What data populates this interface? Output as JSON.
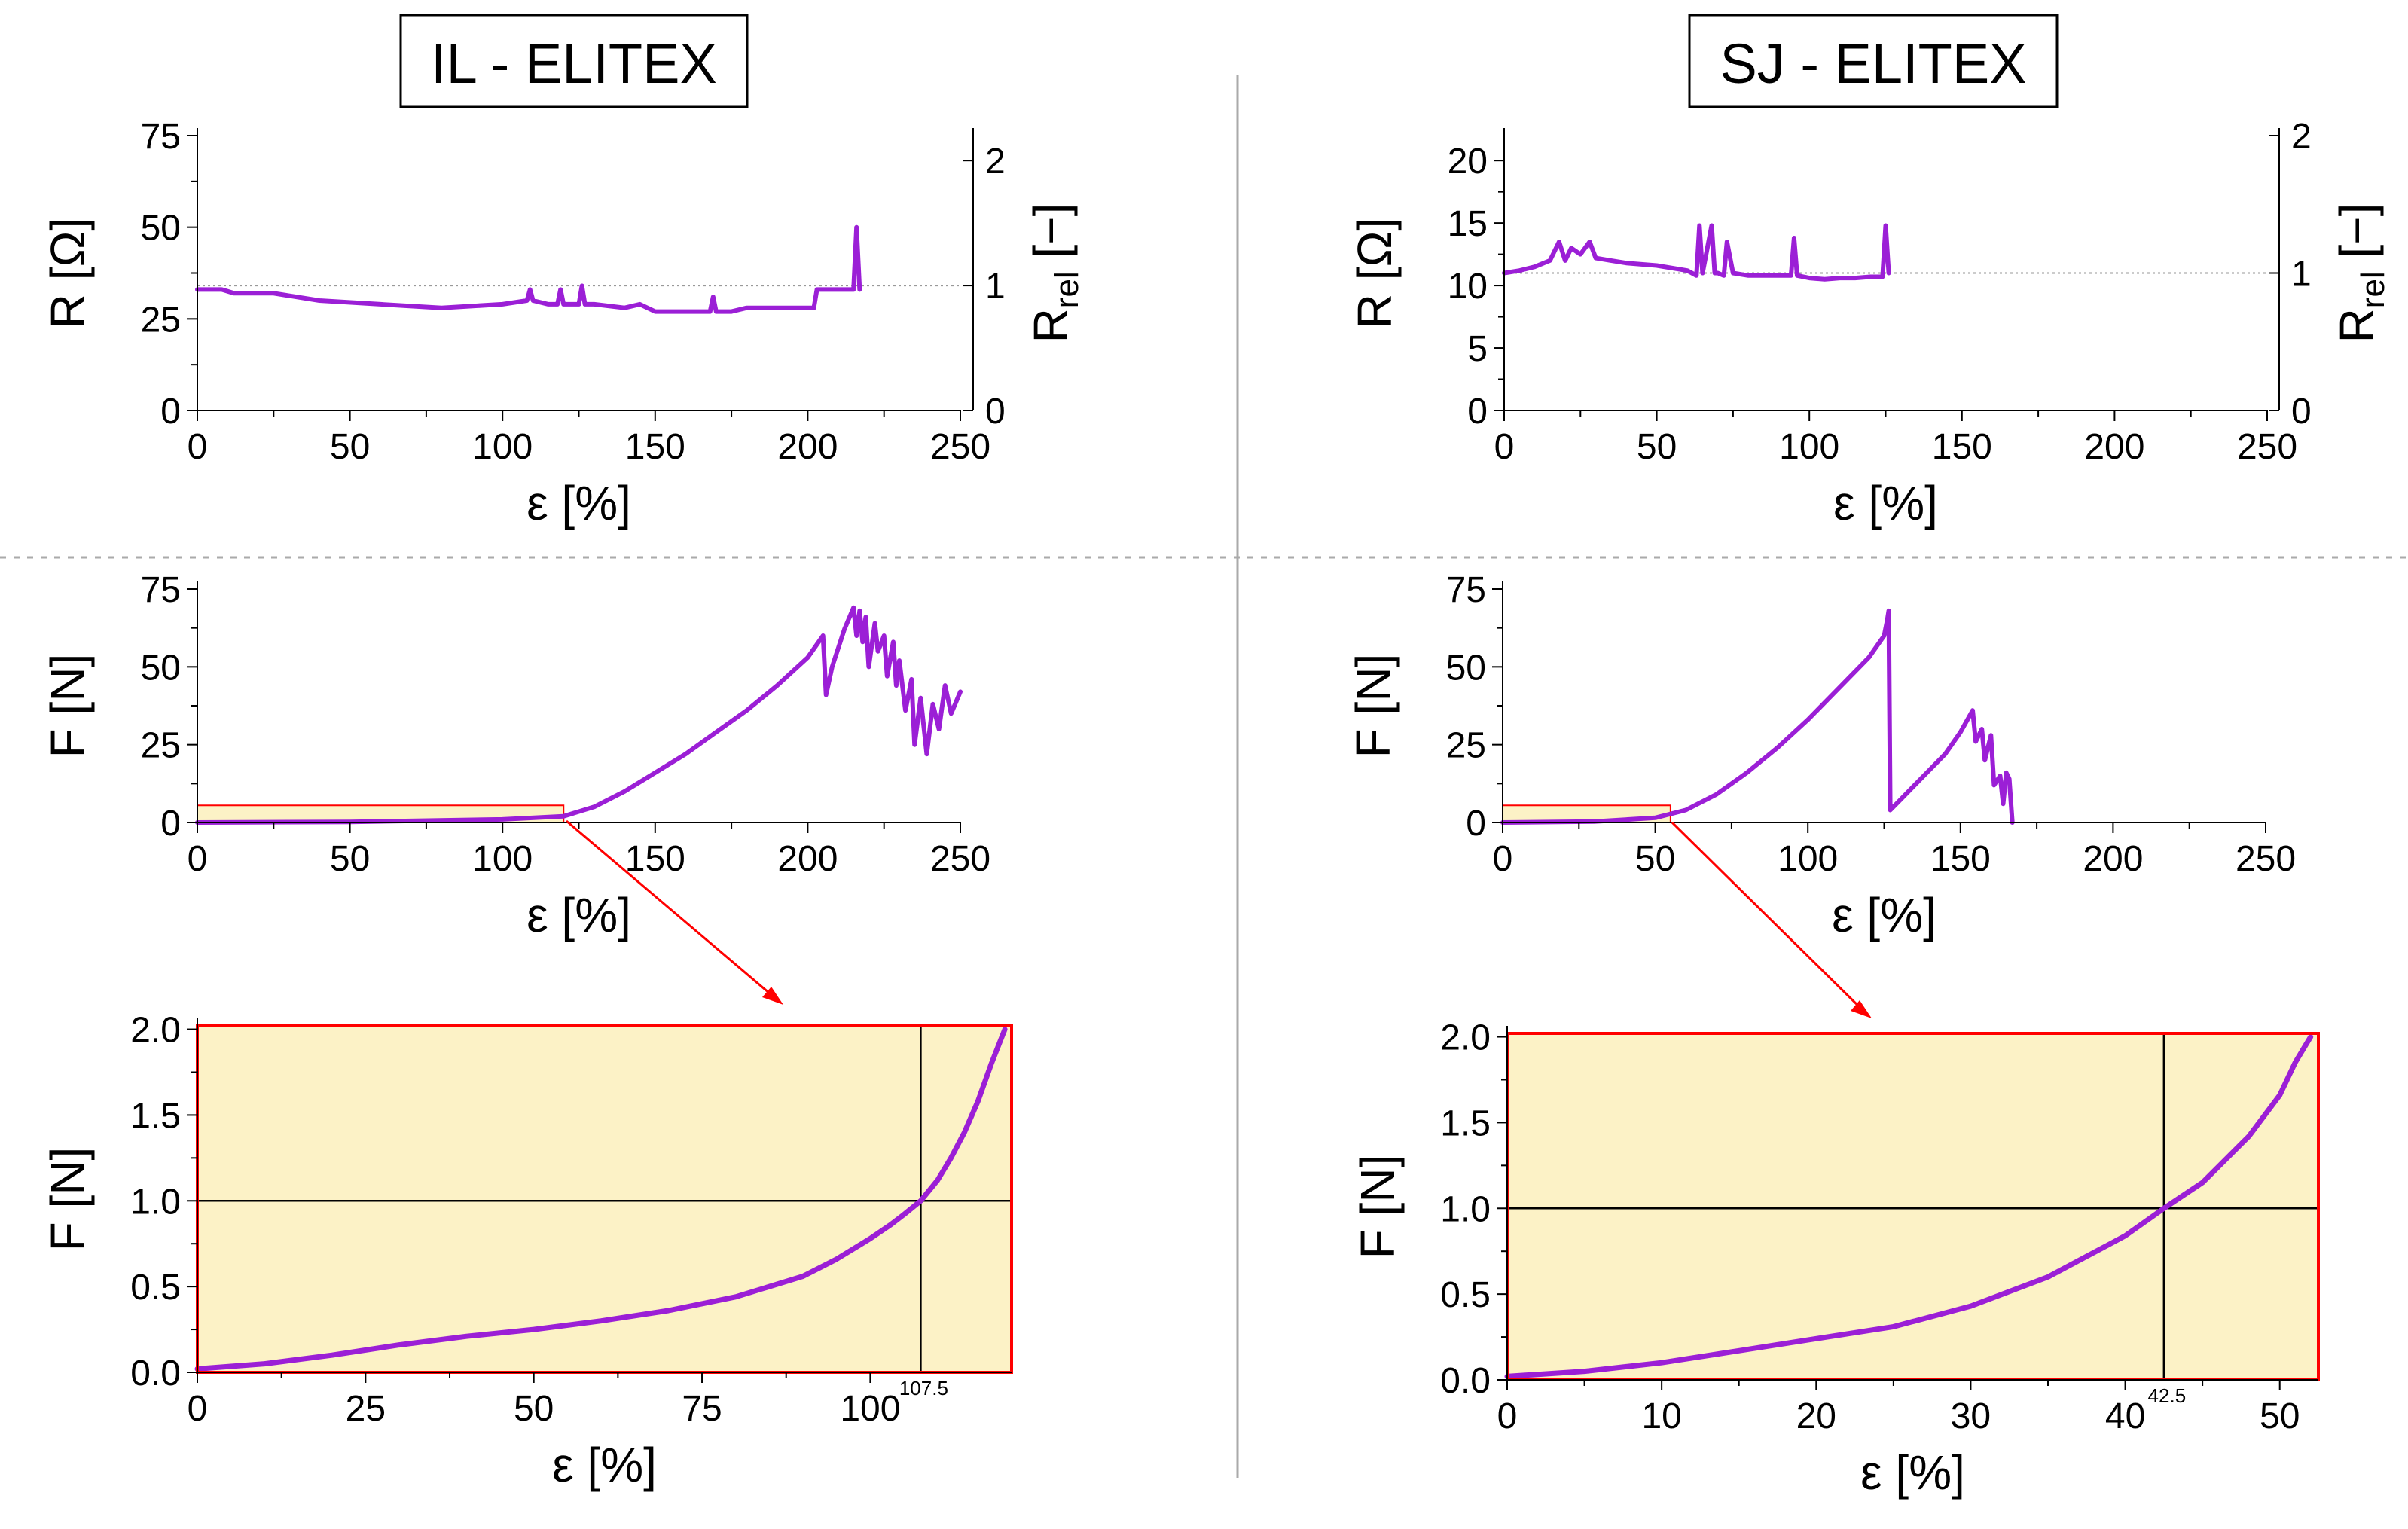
{
  "colors": {
    "trace": "#9b1fd6",
    "zoom_fill": "#fcf2c6",
    "zoom_border": "#ff0000",
    "arrow": "#ff0000",
    "axis": "#000000",
    "divider": "#aaaaaa",
    "ref_line": "#999999"
  },
  "panel_titles": {
    "left": "IL - ELITEX",
    "right": "SJ - ELITEX"
  },
  "chart_data": [
    {
      "id": "il_resistance",
      "type": "line",
      "panel": "left",
      "xlabel": "ε [%]",
      "ylabel": "R [Ω]",
      "y2label": "R",
      "y2label_sub": "rel",
      "y2label_unit": " [−]",
      "xlim": [
        0,
        250
      ],
      "ylim": [
        0,
        75
      ],
      "y2lim": [
        0,
        2.2
      ],
      "xticks": [
        0,
        50,
        100,
        150,
        200,
        250
      ],
      "yticks": [
        0,
        25,
        50,
        75
      ],
      "y2ticks": [
        0,
        1,
        2
      ],
      "reference_line": {
        "axis": "y2",
        "value": 1
      },
      "series": [
        {
          "name": "R",
          "x": [
            0,
            8,
            12,
            25,
            40,
            60,
            80,
            100,
            108,
            109,
            110,
            115,
            118,
            119,
            120,
            125,
            126,
            127,
            130,
            140,
            145,
            150,
            160,
            168,
            169,
            170,
            175,
            180,
            190,
            200,
            202,
            203,
            210,
            215,
            216,
            217
          ],
          "y": [
            33,
            33,
            32,
            32,
            30,
            29,
            28,
            29,
            30,
            33,
            30,
            29,
            29,
            33,
            29,
            29,
            34,
            29,
            29,
            28,
            29,
            27,
            27,
            27,
            31,
            27,
            27,
            28,
            28,
            28,
            28,
            33,
            33,
            33,
            50,
            33
          ]
        }
      ]
    },
    {
      "id": "sj_resistance",
      "type": "line",
      "panel": "right",
      "xlabel": "ε [%]",
      "ylabel": "R [Ω]",
      "y2label": "R",
      "y2label_sub": "rel",
      "y2label_unit": " [−]",
      "xlim": [
        0,
        250
      ],
      "ylim": [
        0,
        22
      ],
      "y2lim": [
        0,
        2
      ],
      "xticks": [
        0,
        50,
        100,
        150,
        200,
        250
      ],
      "yticks": [
        0,
        5,
        10,
        15,
        20
      ],
      "y2ticks": [
        0,
        1,
        2
      ],
      "reference_line": {
        "axis": "y2",
        "value": 1
      },
      "series": [
        {
          "name": "R",
          "x": [
            0,
            5,
            10,
            15,
            18,
            20,
            22,
            25,
            28,
            30,
            35,
            40,
            50,
            60,
            63,
            64,
            65,
            68,
            69,
            70,
            72,
            73,
            75,
            80,
            90,
            94,
            95,
            96,
            100,
            105,
            110,
            115,
            120,
            124,
            125,
            126
          ],
          "y": [
            11,
            11.2,
            11.5,
            12,
            13.5,
            12,
            13,
            12.5,
            13.5,
            12.2,
            12,
            11.8,
            11.6,
            11.2,
            10.8,
            14.8,
            11,
            14.8,
            11,
            11,
            10.8,
            13.5,
            11,
            10.8,
            10.8,
            10.8,
            13.8,
            10.8,
            10.6,
            10.5,
            10.6,
            10.6,
            10.7,
            10.7,
            14.8,
            11
          ]
        }
      ]
    },
    {
      "id": "il_force",
      "type": "line",
      "panel": "left",
      "xlabel": "ε [%]",
      "ylabel": "F [N]",
      "xlim": [
        0,
        250
      ],
      "ylim": [
        0,
        75
      ],
      "xticks": [
        0,
        50,
        100,
        150,
        200,
        250
      ],
      "yticks": [
        0,
        25,
        50,
        75
      ],
      "zoom_region": {
        "x": [
          0,
          120
        ],
        "y": [
          0,
          2
        ]
      },
      "series": [
        {
          "name": "F",
          "x": [
            0,
            50,
            100,
            120,
            130,
            140,
            150,
            160,
            170,
            180,
            190,
            200,
            205,
            206,
            208,
            210,
            212,
            215,
            216,
            217,
            218,
            219,
            220,
            222,
            223,
            225,
            226,
            228,
            229,
            230,
            232,
            234,
            235,
            237,
            239,
            241,
            243,
            245,
            247,
            250
          ],
          "y": [
            0,
            0.2,
            1,
            2,
            5,
            10,
            16,
            22,
            29,
            36,
            44,
            53,
            60,
            41,
            50,
            56,
            62,
            69,
            60,
            68,
            58,
            66,
            50,
            64,
            55,
            60,
            47,
            58,
            44,
            52,
            36,
            46,
            25,
            40,
            22,
            38,
            30,
            44,
            35,
            42
          ]
        }
      ]
    },
    {
      "id": "sj_force",
      "type": "line",
      "panel": "right",
      "xlabel": "ε [%]",
      "ylabel": "F [N]",
      "xlim": [
        0,
        250
      ],
      "ylim": [
        0,
        75
      ],
      "xticks": [
        0,
        50,
        100,
        150,
        200,
        250
      ],
      "yticks": [
        0,
        25,
        50,
        75
      ],
      "zoom_region": {
        "x": [
          0,
          55
        ],
        "y": [
          0,
          2
        ]
      },
      "series": [
        {
          "name": "F",
          "x": [
            0,
            30,
            50,
            60,
            70,
            80,
            90,
            100,
            110,
            120,
            125,
            126,
            126.5,
            127,
            130,
            135,
            140,
            145,
            150,
            154,
            155,
            157,
            158,
            160,
            161,
            163,
            164,
            165,
            166,
            167
          ],
          "y": [
            0,
            0.3,
            1.5,
            4,
            9,
            16,
            24,
            33,
            43,
            53,
            60,
            65,
            68,
            4,
            7,
            12,
            17,
            22,
            29,
            36,
            26,
            30,
            20,
            28,
            12,
            15,
            6,
            16,
            14,
            0
          ]
        }
      ]
    },
    {
      "id": "il_force_zoom",
      "type": "line",
      "panel": "left",
      "xlabel": "ε [%]",
      "ylabel": "F [N]",
      "xlim": [
        0,
        121
      ],
      "ylim": [
        0,
        2.02
      ],
      "xticks": [
        0,
        25,
        50,
        75,
        100
      ],
      "yticks": [
        0.0,
        0.5,
        1.0,
        1.5,
        2.0
      ],
      "ytick_labels": [
        "0.0",
        "0.5",
        "1.0",
        "1.5",
        "2.0"
      ],
      "crosshair": {
        "x": 107.5,
        "y": 1.0,
        "x_label": "107.5"
      },
      "series": [
        {
          "name": "F",
          "x": [
            0,
            10,
            20,
            30,
            40,
            50,
            60,
            70,
            80,
            90,
            95,
            100,
            103,
            105,
            107.5,
            110,
            112,
            114,
            116,
            118,
            120
          ],
          "y": [
            0.02,
            0.05,
            0.1,
            0.16,
            0.21,
            0.25,
            0.3,
            0.36,
            0.44,
            0.56,
            0.66,
            0.78,
            0.86,
            0.92,
            1.0,
            1.12,
            1.25,
            1.4,
            1.58,
            1.8,
            2.0
          ]
        }
      ]
    },
    {
      "id": "sj_force_zoom",
      "type": "line",
      "panel": "right",
      "xlabel": "ε [%]",
      "ylabel": "F [N]",
      "xlim": [
        0,
        52.5
      ],
      "ylim": [
        0,
        2.02
      ],
      "xticks": [
        0,
        10,
        20,
        30,
        40,
        50
      ],
      "yticks": [
        0.0,
        0.5,
        1.0,
        1.5,
        2.0
      ],
      "ytick_labels": [
        "0.0",
        "0.5",
        "1.0",
        "1.5",
        "2.0"
      ],
      "crosshair": {
        "x": 42.5,
        "y": 1.0,
        "x_label": "42.5"
      },
      "series": [
        {
          "name": "F",
          "x": [
            0,
            5,
            10,
            15,
            20,
            25,
            30,
            35,
            40,
            42.5,
            45,
            48,
            50,
            51,
            52
          ],
          "y": [
            0.02,
            0.05,
            0.1,
            0.17,
            0.24,
            0.31,
            0.43,
            0.6,
            0.84,
            1.0,
            1.15,
            1.42,
            1.66,
            1.85,
            2.0
          ]
        }
      ]
    }
  ]
}
